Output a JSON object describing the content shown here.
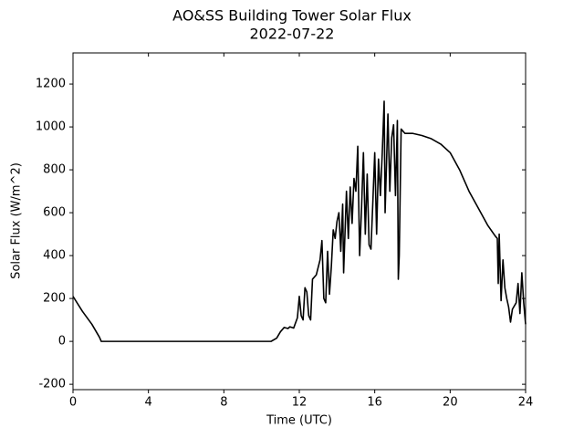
{
  "chart_data": {
    "type": "line",
    "title": "AO&SS Building Tower Solar Flux",
    "subtitle": "2022-07-22",
    "x_label": "Time (UTC)",
    "y_label": "Solar Flux (W/m^2)",
    "color": "#000000",
    "xlim": [
      0,
      24
    ],
    "xticks": [
      0,
      4,
      8,
      12,
      16,
      20,
      24
    ],
    "ylim": [
      -225,
      1345
    ],
    "yticks": [
      -200,
      0,
      200,
      400,
      600,
      800,
      1000,
      1200
    ],
    "x": [
      0,
      0.5,
      1,
      1.4,
      1.5,
      10.5,
      10.8,
      11,
      11.2,
      11.4,
      11.5,
      11.7,
      11.9,
      12.0,
      12.1,
      12.2,
      12.3,
      12.4,
      12.5,
      12.6,
      12.7,
      12.9,
      13.1,
      13.2,
      13.3,
      13.4,
      13.5,
      13.6,
      13.7,
      13.8,
      13.9,
      14.0,
      14.1,
      14.2,
      14.3,
      14.35,
      14.5,
      14.6,
      14.7,
      14.8,
      14.9,
      15.0,
      15.1,
      15.2,
      15.3,
      15.4,
      15.5,
      15.6,
      15.7,
      15.8,
      15.9,
      16.0,
      16.1,
      16.2,
      16.3,
      16.4,
      16.5,
      16.55,
      16.7,
      16.8,
      16.9,
      17.0,
      17.1,
      17.2,
      17.25,
      17.3,
      17.4,
      17.6,
      18,
      18.5,
      19,
      19.5,
      20,
      20.5,
      21,
      21.5,
      22,
      22.4,
      22.5,
      22.55,
      22.6,
      22.7,
      22.8,
      22.9,
      23.0,
      23.1,
      23.2,
      23.3,
      23.5,
      23.6,
      23.7,
      23.8,
      23.9,
      24
    ],
    "values": [
      210,
      140,
      80,
      20,
      0,
      0,
      15,
      45,
      65,
      60,
      68,
      62,
      110,
      210,
      120,
      100,
      250,
      230,
      120,
      100,
      290,
      310,
      380,
      470,
      200,
      180,
      420,
      220,
      350,
      520,
      480,
      560,
      600,
      420,
      640,
      320,
      700,
      480,
      720,
      550,
      760,
      700,
      910,
      400,
      620,
      880,
      500,
      780,
      450,
      430,
      650,
      880,
      500,
      850,
      680,
      880,
      1120,
      600,
      1060,
      700,
      950,
      1010,
      680,
      1030,
      290,
      400,
      990,
      970,
      970,
      960,
      945,
      920,
      880,
      800,
      700,
      620,
      540,
      490,
      480,
      270,
      500,
      190,
      380,
      250,
      200,
      160,
      90,
      150,
      180,
      270,
      130,
      320,
      180,
      80
    ]
  }
}
